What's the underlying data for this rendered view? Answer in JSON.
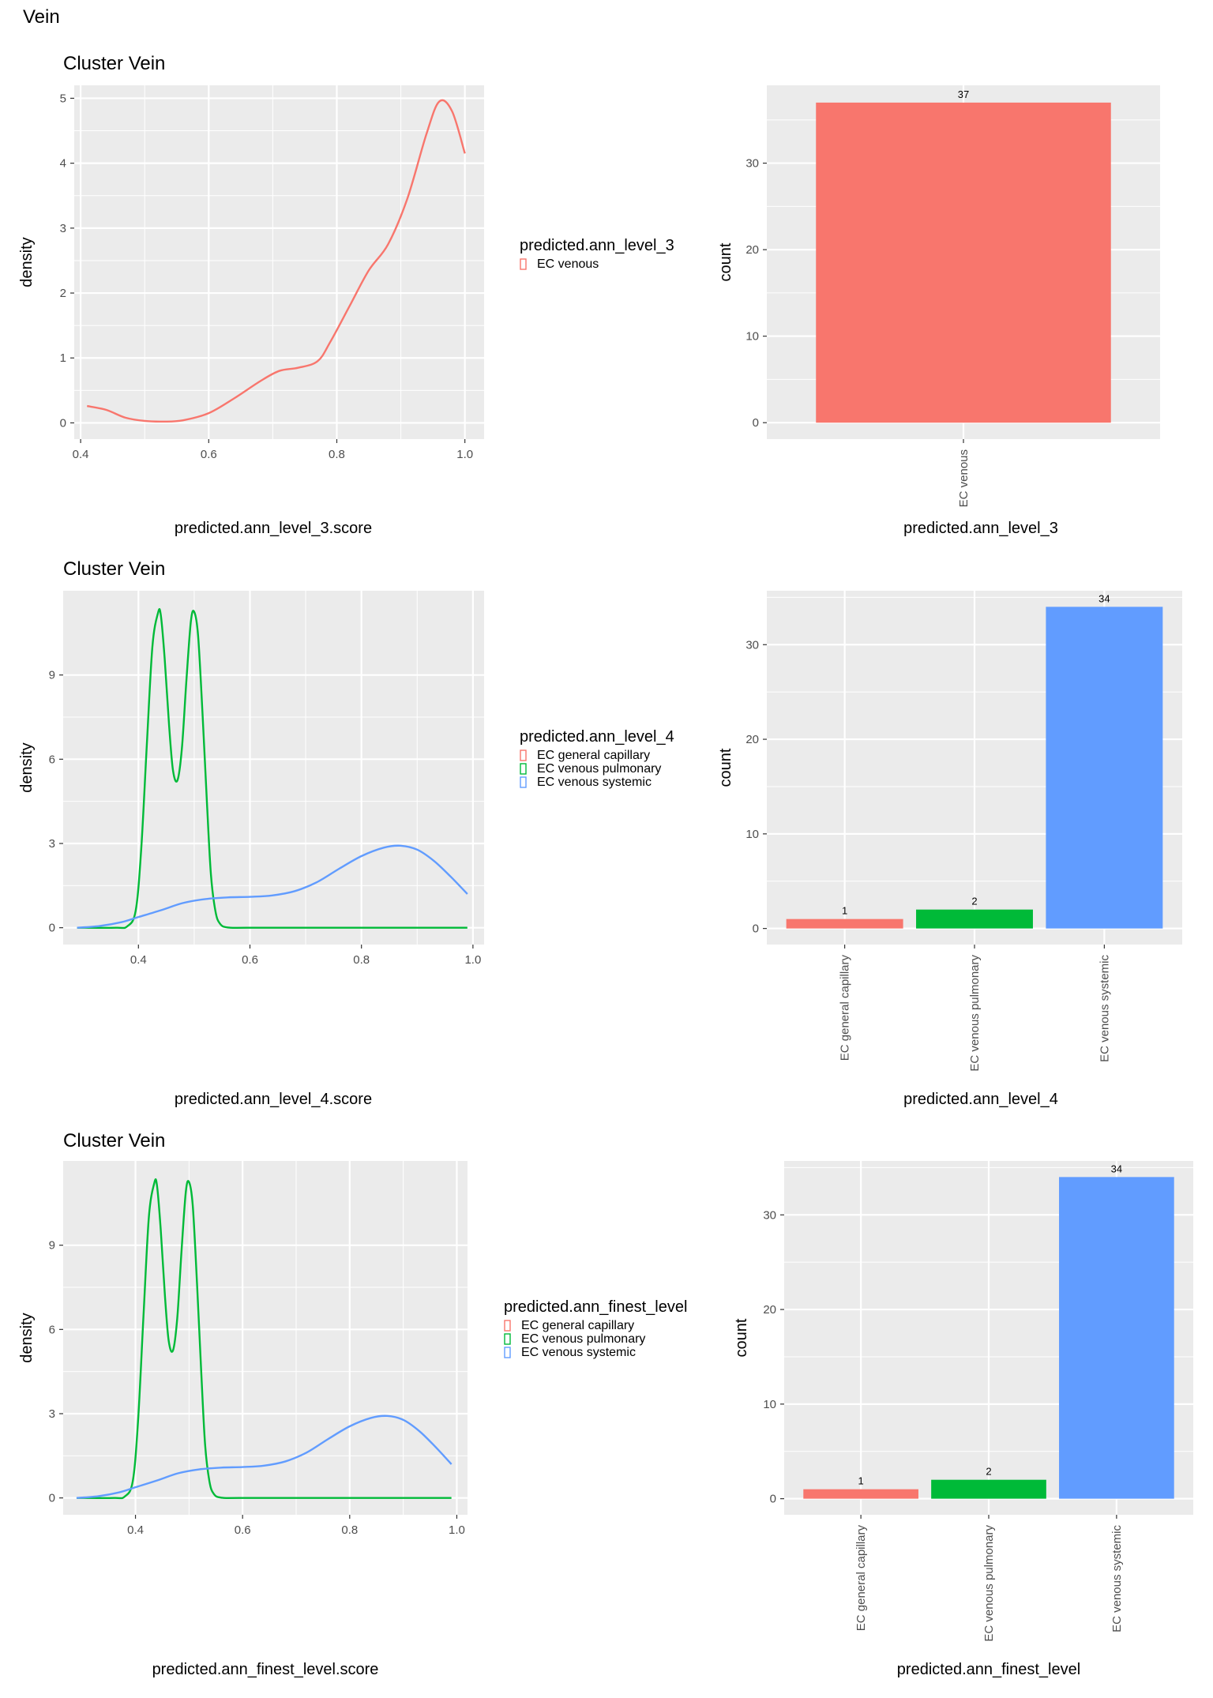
{
  "page": {
    "title": "Vein"
  },
  "colors": {
    "panel_bg": "#EBEBEB",
    "grid": "#FFFFFF",
    "red": "#F8766D",
    "green": "#00BA38",
    "blue": "#619CFF",
    "tick_text": "#4D4D4D"
  },
  "chart_data": [
    {
      "id": "density_l3",
      "type": "line",
      "title": "Cluster Vein",
      "xlabel": "predicted.ann_level_3.score",
      "ylabel": "density",
      "xlim": [
        0.39,
        1.03
      ],
      "ylim": [
        -0.25,
        5.2
      ],
      "xticks": [
        0.4,
        0.6,
        0.8,
        1.0
      ],
      "xtick_labels": [
        "0.4",
        "0.6",
        "0.8",
        "1.0"
      ],
      "yticks": [
        0,
        1,
        2,
        3,
        4,
        5
      ],
      "ytick_labels": [
        "0",
        "1",
        "2",
        "3",
        "4",
        "5"
      ],
      "legend": {
        "title": "predicted.ann_level_3",
        "position": "right"
      },
      "series": [
        {
          "name": "EC venous",
          "color": "#F8766D",
          "x": [
            0.41,
            0.44,
            0.47,
            0.5,
            0.53,
            0.56,
            0.6,
            0.64,
            0.68,
            0.71,
            0.74,
            0.77,
            0.79,
            0.82,
            0.85,
            0.88,
            0.91,
            0.94,
            0.96,
            0.98,
            1.0
          ],
          "y": [
            0.26,
            0.2,
            0.08,
            0.03,
            0.02,
            0.04,
            0.15,
            0.38,
            0.64,
            0.8,
            0.85,
            0.95,
            1.25,
            1.8,
            2.35,
            2.75,
            3.45,
            4.45,
            4.95,
            4.8,
            4.15
          ]
        }
      ]
    },
    {
      "id": "bar_l3",
      "type": "bar",
      "xlabel": "predicted.ann_level_3",
      "ylabel": "count",
      "ylim": [
        -1.9,
        39
      ],
      "yticks": [
        0,
        10,
        20,
        30
      ],
      "ytick_labels": [
        "0",
        "10",
        "20",
        "30"
      ],
      "categories": [
        "EC venous"
      ],
      "values": [
        37
      ],
      "data_labels": [
        "37"
      ],
      "colors": [
        "#F8766D"
      ]
    },
    {
      "id": "density_l4",
      "type": "line",
      "title": "Cluster Vein",
      "xlabel": "predicted.ann_level_4.score",
      "ylabel": "density",
      "xlim": [
        0.265,
        1.02
      ],
      "ylim": [
        -0.6,
        12.0
      ],
      "xticks": [
        0.4,
        0.6,
        0.8,
        1.0
      ],
      "xtick_labels": [
        "0.4",
        "0.6",
        "0.8",
        "1.0"
      ],
      "yticks": [
        0,
        3,
        6,
        9
      ],
      "ytick_labels": [
        "0",
        "3",
        "6",
        "9"
      ],
      "legend": {
        "title": "predicted.ann_level_4",
        "position": "right"
      },
      "series": [
        {
          "name": "EC general capillary",
          "color": "#F8766D",
          "x": [],
          "y": []
        },
        {
          "name": "EC venous pulmonary",
          "color": "#00BA38",
          "x": [
            0.29,
            0.36,
            0.38,
            0.395,
            0.405,
            0.415,
            0.425,
            0.435,
            0.44,
            0.447,
            0.455,
            0.462,
            0.47,
            0.478,
            0.486,
            0.494,
            0.5,
            0.507,
            0.515,
            0.523,
            0.53,
            0.538,
            0.546,
            0.56,
            0.6,
            0.8,
            0.99
          ],
          "y": [
            0,
            0,
            0.05,
            0.6,
            2.8,
            6.5,
            10.0,
            11.2,
            11.15,
            9.6,
            7.2,
            5.6,
            5.25,
            6.4,
            8.8,
            10.9,
            11.25,
            10.4,
            7.6,
            4.4,
            1.9,
            0.6,
            0.15,
            0.01,
            0,
            0,
            0
          ]
        },
        {
          "name": "EC venous systemic",
          "color": "#619CFF",
          "x": [
            0.29,
            0.33,
            0.37,
            0.4,
            0.44,
            0.48,
            0.52,
            0.56,
            0.6,
            0.64,
            0.68,
            0.72,
            0.76,
            0.8,
            0.84,
            0.87,
            0.9,
            0.93,
            0.96,
            0.99
          ],
          "y": [
            0,
            0.06,
            0.2,
            0.38,
            0.62,
            0.88,
            1.02,
            1.08,
            1.1,
            1.15,
            1.3,
            1.62,
            2.1,
            2.55,
            2.85,
            2.92,
            2.78,
            2.38,
            1.82,
            1.2
          ]
        }
      ]
    },
    {
      "id": "bar_l4",
      "type": "bar",
      "xlabel": "predicted.ann_level_4",
      "ylabel": "count",
      "ylim": [
        -1.7,
        35.7
      ],
      "yticks": [
        0,
        10,
        20,
        30
      ],
      "ytick_labels": [
        "0",
        "10",
        "20",
        "30"
      ],
      "categories": [
        "EC general capillary",
        "EC venous pulmonary",
        "EC venous systemic"
      ],
      "values": [
        1,
        2,
        34
      ],
      "data_labels": [
        "1",
        "2",
        "34"
      ],
      "colors": [
        "#F8766D",
        "#00BA38",
        "#619CFF"
      ]
    },
    {
      "id": "density_finest",
      "type": "line",
      "title": "Cluster Vein",
      "xlabel": "predicted.ann_finest_level.score",
      "ylabel": "density",
      "xlim": [
        0.265,
        1.02
      ],
      "ylim": [
        -0.6,
        12.0
      ],
      "xticks": [
        0.4,
        0.6,
        0.8,
        1.0
      ],
      "xtick_labels": [
        "0.4",
        "0.6",
        "0.8",
        "1.0"
      ],
      "yticks": [
        0,
        3,
        6,
        9
      ],
      "ytick_labels": [
        "0",
        "3",
        "6",
        "9"
      ],
      "legend": {
        "title": "predicted.ann_finest_level",
        "position": "right"
      },
      "series": [
        {
          "name": "EC general capillary",
          "color": "#F8766D",
          "x": [],
          "y": []
        },
        {
          "name": "EC venous pulmonary",
          "color": "#00BA38",
          "x": [
            0.29,
            0.36,
            0.38,
            0.395,
            0.405,
            0.415,
            0.425,
            0.435,
            0.44,
            0.447,
            0.455,
            0.462,
            0.47,
            0.478,
            0.486,
            0.494,
            0.5,
            0.507,
            0.515,
            0.523,
            0.53,
            0.538,
            0.546,
            0.56,
            0.6,
            0.8,
            0.99
          ],
          "y": [
            0,
            0,
            0.05,
            0.6,
            2.8,
            6.5,
            10.0,
            11.2,
            11.15,
            9.6,
            7.2,
            5.6,
            5.25,
            6.4,
            8.8,
            10.9,
            11.25,
            10.4,
            7.6,
            4.4,
            1.9,
            0.6,
            0.15,
            0.01,
            0,
            0,
            0
          ]
        },
        {
          "name": "EC venous systemic",
          "color": "#619CFF",
          "x": [
            0.29,
            0.33,
            0.37,
            0.4,
            0.44,
            0.48,
            0.52,
            0.56,
            0.6,
            0.64,
            0.68,
            0.72,
            0.76,
            0.8,
            0.84,
            0.87,
            0.9,
            0.93,
            0.96,
            0.99
          ],
          "y": [
            0,
            0.06,
            0.2,
            0.38,
            0.62,
            0.88,
            1.02,
            1.08,
            1.1,
            1.15,
            1.3,
            1.62,
            2.1,
            2.55,
            2.85,
            2.92,
            2.78,
            2.38,
            1.82,
            1.2
          ]
        }
      ]
    },
    {
      "id": "bar_finest",
      "type": "bar",
      "xlabel": "predicted.ann_finest_level",
      "ylabel": "count",
      "ylim": [
        -1.7,
        35.7
      ],
      "yticks": [
        0,
        10,
        20,
        30
      ],
      "ytick_labels": [
        "0",
        "10",
        "20",
        "30"
      ],
      "categories": [
        "EC general capillary",
        "EC venous pulmonary",
        "EC venous systemic"
      ],
      "values": [
        1,
        2,
        34
      ],
      "data_labels": [
        "1",
        "2",
        "34"
      ],
      "colors": [
        "#F8766D",
        "#00BA38",
        "#619CFF"
      ]
    }
  ]
}
